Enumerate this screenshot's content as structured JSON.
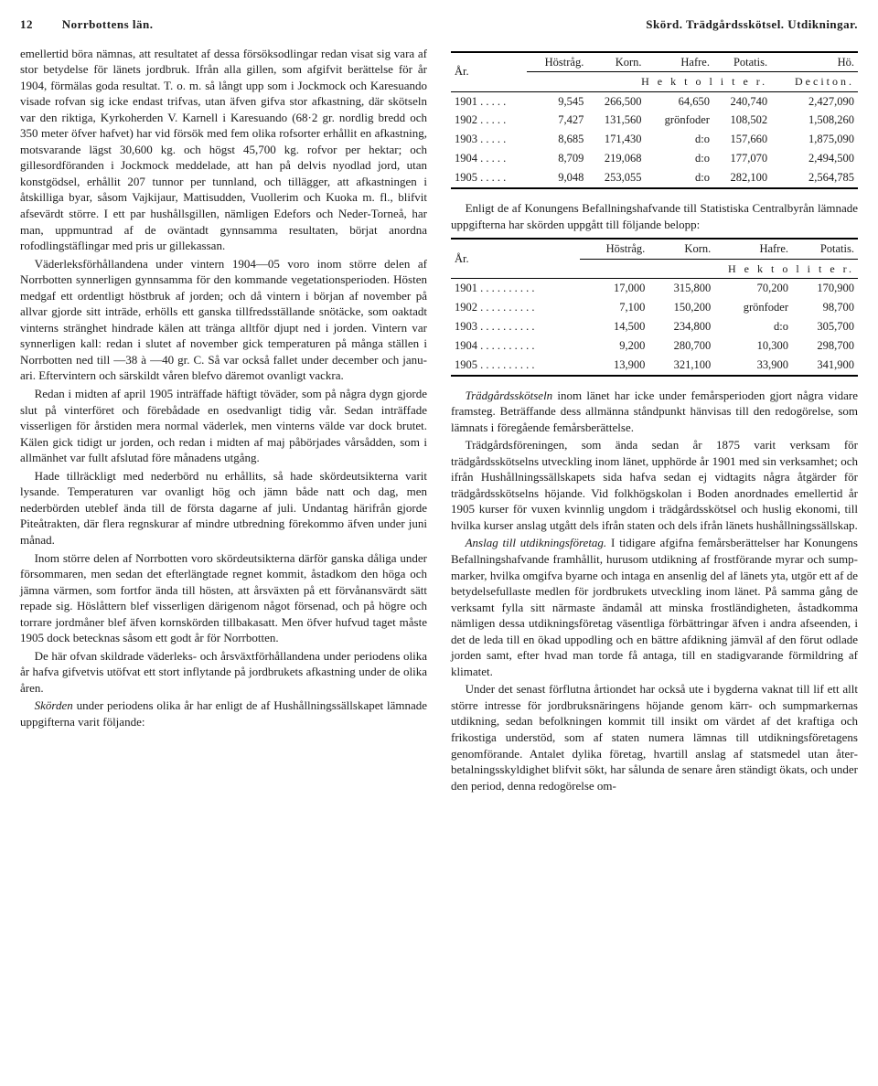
{
  "header": {
    "page": "12",
    "running_left": "Norrbottens län.",
    "running_right": "Skörd.  Trädgårdsskötsel.  Utdikningar."
  },
  "left": {
    "p1": "emellertid böra nämnas, att resultatet af dessa försöksod­lingar redan visat sig vara af stor betydelse för länets jord­bruk. Ifrån alla gillen, som afgifvit berättelse för år 1904, förmälas goda resultat. T. o. m. så långt upp som i Jock­mock och Karesuando visade rofvan sig icke endast trifvas, utan äfven gifva stor afkastning, där skötseln var den rik­tiga, Kyrkoherden V. Karnell i Karesuando (68·2 gr. nordlig bredd och 350 meter öfver hafvet) har vid försök med fem olika rofsorter erhållit en afkastning, motsvarande lägst 30,600 kg. och högst 45,700 kg. rofvor per hektar; och gillesordföranden i Jockmock meddelade, att han på delvis nyodlad jord, utan konstgödsel, erhållit 207 tunnor per tunn­land, och tillägger, att afkastningen i åtskilliga byar, såsom Vajkijaur, Mattisudden, Vuollerim och Kuoka m. fl., blifvit afsevärdt större. I ett par hushållsgillen, nämligen Edefors och Neder-Torneå, har man, uppmuntrad af de oväntadt gynnsamma resultaten, börjat anordna rofodlingstäflingar med pris ur gillekassan.",
    "p2": "Väderleksförhållandena under vintern 1904—05 voro inom större delen af Norrbotten synnerligen gynnsamma för den kommande vegetationsperioden. Hösten medgaf ett ordentligt höstbruk af jorden; och då vintern i början af november på allvar gjorde sitt inträde, erhölls ett ganska tillfredsställande snötäcke, som oaktadt vinterns stränghet hindrade kälen att tränga alltför djupt ned i jorden. Vin­tern var synnerligen kall: redan i slutet af november gick temperaturen på många ställen i Norrbotten ned till —38 à —40 gr. C. Så var också fallet under december och janu­ari. Eftervintern och särskildt våren blefvo däremot ovan­ligt vackra.",
    "p3": "Redan i midten af april 1905 inträffade häftigt töväder, som på några dygn gjorde slut på vinterföret och förebådade en osedvanligt tidig vår. Sedan inträffade visserligen för årstiden mera normal väderlek, men vinterns välde var dock brutet. Kälen gick tidigt ur jorden, och redan i midten af maj påbörjades vårsådden, som i allmänhet var fullt afslutad före månadens utgång.",
    "p4": "Hade tillräckligt med nederbörd nu erhållits, så hade skördeutsikterna varit lysande. Temperaturen var ovan­ligt hög och jämn både natt och dag, men nederbörden ute­blef ända till de första dagarne af juli. Undantag härifrån gjorde Piteåtrakten, där flera regnskurar af mindre utbred­ning förekommo äfven under juni månad.",
    "p5": "Inom större delen af Norrbotten voro skördeutsikterna därför ganska dåliga under försommaren, men sedan det efterlängtade regnet kommit, åstadkom den höga och jämna värmen, som fortfor ända till hösten, att årsväxten på ett förvånansvärdt sätt repade sig. Höslåttern blef visserligen därigenom något försenad, och på högre och torrare jord­måner blef äfven kornskörden tillbakasatt. Men öfver huf­vud taget måste 1905 dock betecknas såsom ett godt år för Norrbotten.",
    "p6": "De här ofvan skildrade väderleks- och årsväxtförhållandena under periodens olika år hafva gifvetvis utöfvat ett stort inflytande på jordbrukets afkastning under de olika åren.",
    "p7_lead": "Skörden",
    "p7_rest": " under periodens olika år har enligt de af Hus­hållningssällskapet lämnade uppgifterna varit följande:"
  },
  "table1": {
    "col_year": "År.",
    "cols": [
      "Höstråg.",
      "Korn.",
      "Hafre.",
      "Potatis.",
      "Hö."
    ],
    "unit_left": "H e k t o l i t e r.",
    "unit_right": "Deciton.",
    "rows": [
      {
        "year": "1901 . . . . .",
        "v": [
          "9,545",
          "266,500",
          "64,650",
          "240,740",
          "2,427,090"
        ]
      },
      {
        "year": "1902 . . . . .",
        "v": [
          "7,427",
          "131,560",
          "grönfoder",
          "108,502",
          "1,508,260"
        ]
      },
      {
        "year": "1903 . . . . .",
        "v": [
          "8,685",
          "171,430",
          "d:o",
          "157,660",
          "1,875,090"
        ]
      },
      {
        "year": "1904 . . . . .",
        "v": [
          "8,709",
          "219,068",
          "d:o",
          "177,070",
          "2,494,500"
        ]
      },
      {
        "year": "1905 . . . . .",
        "v": [
          "9,048",
          "253,055",
          "d:o",
          "282,100",
          "2,564,785"
        ]
      }
    ]
  },
  "right": {
    "p1": "Enligt de af Konungens Befallningshafvande till Sta­tistiska Centralbyrån lämnade uppgifterna har skörden upp­gått till följande belopp:"
  },
  "table2": {
    "col_year": "År.",
    "cols": [
      "Höstråg.",
      "Korn.",
      "Hafre.",
      "Potatis."
    ],
    "unit": "H e k t o l i t e r.",
    "rows": [
      {
        "year": "1901 . . . . . . . . . .",
        "v": [
          "17,000",
          "315,800",
          "70,200",
          "170,900"
        ]
      },
      {
        "year": "1902 . . . . . . . . . .",
        "v": [
          "7,100",
          "150,200",
          "grönfoder",
          "98,700"
        ]
      },
      {
        "year": "1903 . . . . . . . . . .",
        "v": [
          "14,500",
          "234,800",
          "d:o",
          "305,700"
        ]
      },
      {
        "year": "1904 . . . . . . . . . .",
        "v": [
          "9,200",
          "280,700",
          "10,300",
          "298,700"
        ]
      },
      {
        "year": "1905 . . . . . . . . . .",
        "v": [
          "13,900",
          "321,100",
          "33,900",
          "341,900"
        ]
      }
    ]
  },
  "right2": {
    "p2_lead": "Trädgårdsskötseln",
    "p2_rest": " inom länet har icke under femårs­perioden gjort några vidare framsteg. Beträffande dess all­männa ståndpunkt hänvisas till den redogörelse, som läm­nats i föregående femårsberättelse.",
    "p3": "Trädgårdsföreningen, som ända sedan år 1875 varit verksam för trädgårdsskötselns utveckling inom länet, upp­hörde år 1901 med sin verksamhet; och ifrån Hushållnings­sällskapets sida hafva sedan ej vidtagits några åtgärder för trädgårdsskötselns höjande. Vid folkhögskolan i Boden an­ordnades emellertid år 1905 kurser för vuxen kvinnlig ung­dom i trädgårdsskötsel och huslig ekonomi, till hvilka kur­ser anslag utgått dels ifrån staten och dels ifrån länets hushållningssällskap.",
    "p4_lead": "Anslag till utdikningsföretag.",
    "p4_rest": " I tidigare afgifna fem­årsberättelser har Konungens Befallningshafvande framhål­lit, hurusom utdikning af frostförande myrar och sump­marker, hvilka omgifva byarne och intaga en ansenlig del af länets yta, utgör ett af de betydelsefullaste medlen för jordbrukets utveckling inom länet. På samma gång de verk­samt fylla sitt närmaste ändamål att minska frostländig­heten, åstadkomma nämligen dessa utdikningsföretag väsent­liga förbättringar äfven i andra afseenden, i det de leda till en ökad uppodling och en bättre afdikning jämväl af den förut odlade jorden samt, efter hvad man torde få antaga, till en stadigvarande förmildring af klimatet.",
    "p5": "Under det senast förflutna årtiondet har också ute i bygderna vaknat till lif ett allt större intresse för jord­bruksnäringens höjande genom kärr- och sumpmarkernas utdikning, sedan befolkningen kommit till insikt om vär­det af det kraftiga och frikostiga understöd, som af staten numera lämnas till utdikningsföretagens genomförande. An­talet dylika företag, hvartill anslag af statsmedel utan åter­betalningsskyldighet blifvit sökt, har sålunda de senare åren ständigt ökats, och under den period, denna redogörelse om-"
  }
}
